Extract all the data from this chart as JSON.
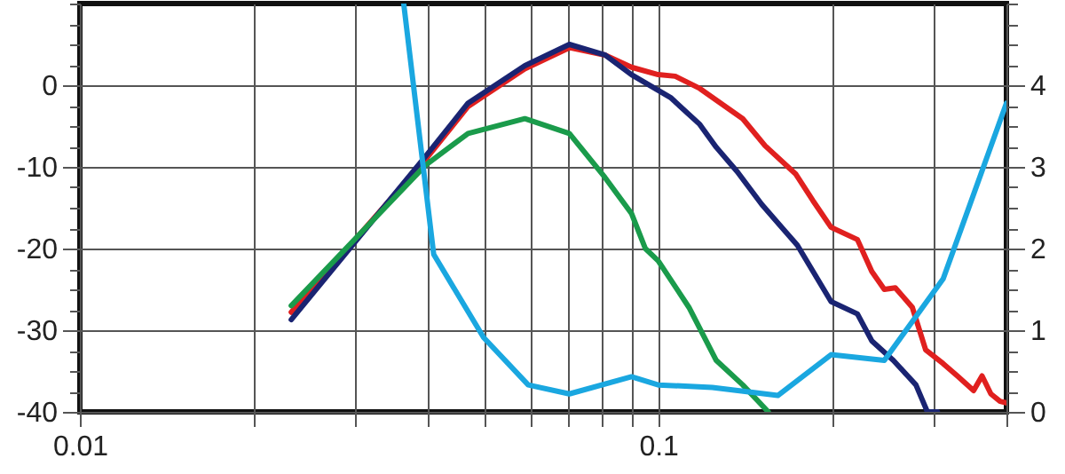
{
  "chart_data": {
    "type": "line",
    "log": "x",
    "grid": true,
    "xlim": [
      0.01,
      0.4
    ],
    "xticks": [
      0.01,
      {
        "value": 0.02,
        "label": null
      },
      {
        "value": 0.03,
        "label": null
      },
      {
        "value": 0.04,
        "label": null
      },
      {
        "value": 0.05,
        "label": null
      },
      {
        "value": 0.06,
        "label": null
      },
      {
        "value": 0.07,
        "label": null
      },
      {
        "value": 0.08,
        "label": null
      },
      {
        "value": 0.09,
        "label": null
      },
      0.1,
      {
        "value": 0.2,
        "label": null
      },
      {
        "value": 0.3,
        "label": null
      },
      {
        "value": 0.4,
        "label": null
      }
    ],
    "ylim": [
      -40,
      10
    ],
    "yticks": [
      -40,
      {
        "value": -37.5,
        "label": null
      },
      {
        "value": -35,
        "label": null
      },
      {
        "value": -32.5,
        "label": null
      },
      -30,
      {
        "value": -27.5,
        "label": null
      },
      {
        "value": -25,
        "label": null
      },
      {
        "value": -22.5,
        "label": null
      },
      -20,
      {
        "value": -17.5,
        "label": null
      },
      {
        "value": -15,
        "label": null
      },
      {
        "value": -12.5,
        "label": null
      },
      -10,
      {
        "value": -7.5,
        "label": null
      },
      {
        "value": -5,
        "label": null
      },
      {
        "value": -2.5,
        "label": null
      },
      0,
      {
        "value": 2.5,
        "label": null
      },
      {
        "value": 5,
        "label": null
      },
      {
        "value": 7.5,
        "label": null
      },
      {
        "value": 10,
        "label": null
      }
    ],
    "y2lim": [
      0,
      5
    ],
    "y2ticks": [
      0,
      {
        "value": 0.25,
        "label": null
      },
      {
        "value": 0.5,
        "label": null
      },
      {
        "value": 0.75,
        "label": null
      },
      1,
      {
        "value": 1.25,
        "label": null
      },
      {
        "value": 1.5,
        "label": null
      },
      {
        "value": 1.75,
        "label": null
      },
      2,
      {
        "value": 2.25,
        "label": null
      },
      {
        "value": 2.5,
        "label": null
      },
      {
        "value": 2.75,
        "label": null
      },
      3,
      {
        "value": 3.25,
        "label": null
      },
      {
        "value": 3.5,
        "label": null
      },
      {
        "value": 3.75,
        "label": null
      },
      4,
      {
        "value": 4.25,
        "label": null
      },
      {
        "value": 4.5,
        "label": null
      },
      {
        "value": 4.75,
        "label": null
      },
      {
        "value": 5,
        "label": null
      }
    ],
    "series": [
      {
        "color": "#e0201f",
        "x": [
          0.0232,
          0.0396,
          0.0469,
          0.0588,
          0.0702,
          0.0809,
          0.0899,
          0.1,
          0.107,
          0.118,
          0.14,
          0.153,
          0.173,
          0.185,
          0.199,
          0.221,
          0.234,
          0.246,
          0.257,
          0.275,
          0.29,
          0.311,
          0.329,
          0.351,
          0.363,
          0.376,
          0.39,
          0.4
        ],
        "values": [
          -27.8,
          -9.1,
          -2.6,
          2.0,
          4.6,
          3.7,
          2.2,
          1.3,
          1.1,
          -0.4,
          -4.1,
          -7.4,
          -10.9,
          -14.1,
          -17.4,
          -18.9,
          -22.8,
          -25.0,
          -24.8,
          -27.2,
          -32.4,
          -34.1,
          -35.6,
          -37.4,
          -35.6,
          -37.8,
          -38.7,
          -38.9
        ]
      },
      {
        "color": "#1a2472",
        "x": [
          0.0232,
          0.0396,
          0.0469,
          0.0588,
          0.0702,
          0.0809,
          0.0899,
          0.105,
          0.118,
          0.126,
          0.137,
          0.151,
          0.174,
          0.199,
          0.221,
          0.234,
          0.255,
          0.27,
          0.279,
          0.292,
          0.304
        ],
        "values": [
          -28.7,
          -8.7,
          -2.2,
          2.4,
          5.0,
          3.7,
          1.3,
          -1.5,
          -4.8,
          -7.6,
          -10.6,
          -14.6,
          -19.6,
          -26.5,
          -28.0,
          -31.3,
          -33.7,
          -35.6,
          -36.7,
          -40,
          -40
        ]
      },
      {
        "color": "#1a9b4b",
        "x": [
          0.0232,
          0.0396,
          0.0469,
          0.0588,
          0.0702,
          0.0809,
          0.0899,
          0.095,
          0.1,
          0.113,
          0.126,
          0.14,
          0.155
        ],
        "values": [
          -27.0,
          -9.8,
          -5.9,
          -4.1,
          -5.9,
          -11.3,
          -15.7,
          -20.0,
          -21.5,
          -27.2,
          -33.7,
          -36.7,
          -40
        ]
      },
      {
        "color": "#1aa7e0",
        "axis": "y2",
        "x": [
          0.0363,
          0.0409,
          0.0499,
          0.0596,
          0.0702,
          0.0899,
          0.1,
          0.124,
          0.161,
          0.199,
          0.246,
          0.311,
          0.4
        ],
        "values": [
          5.0,
          1.93,
          0.91,
          0.33,
          0.22,
          0.43,
          0.33,
          0.3,
          0.2,
          0.7,
          0.63,
          1.63,
          3.78
        ]
      }
    ]
  }
}
